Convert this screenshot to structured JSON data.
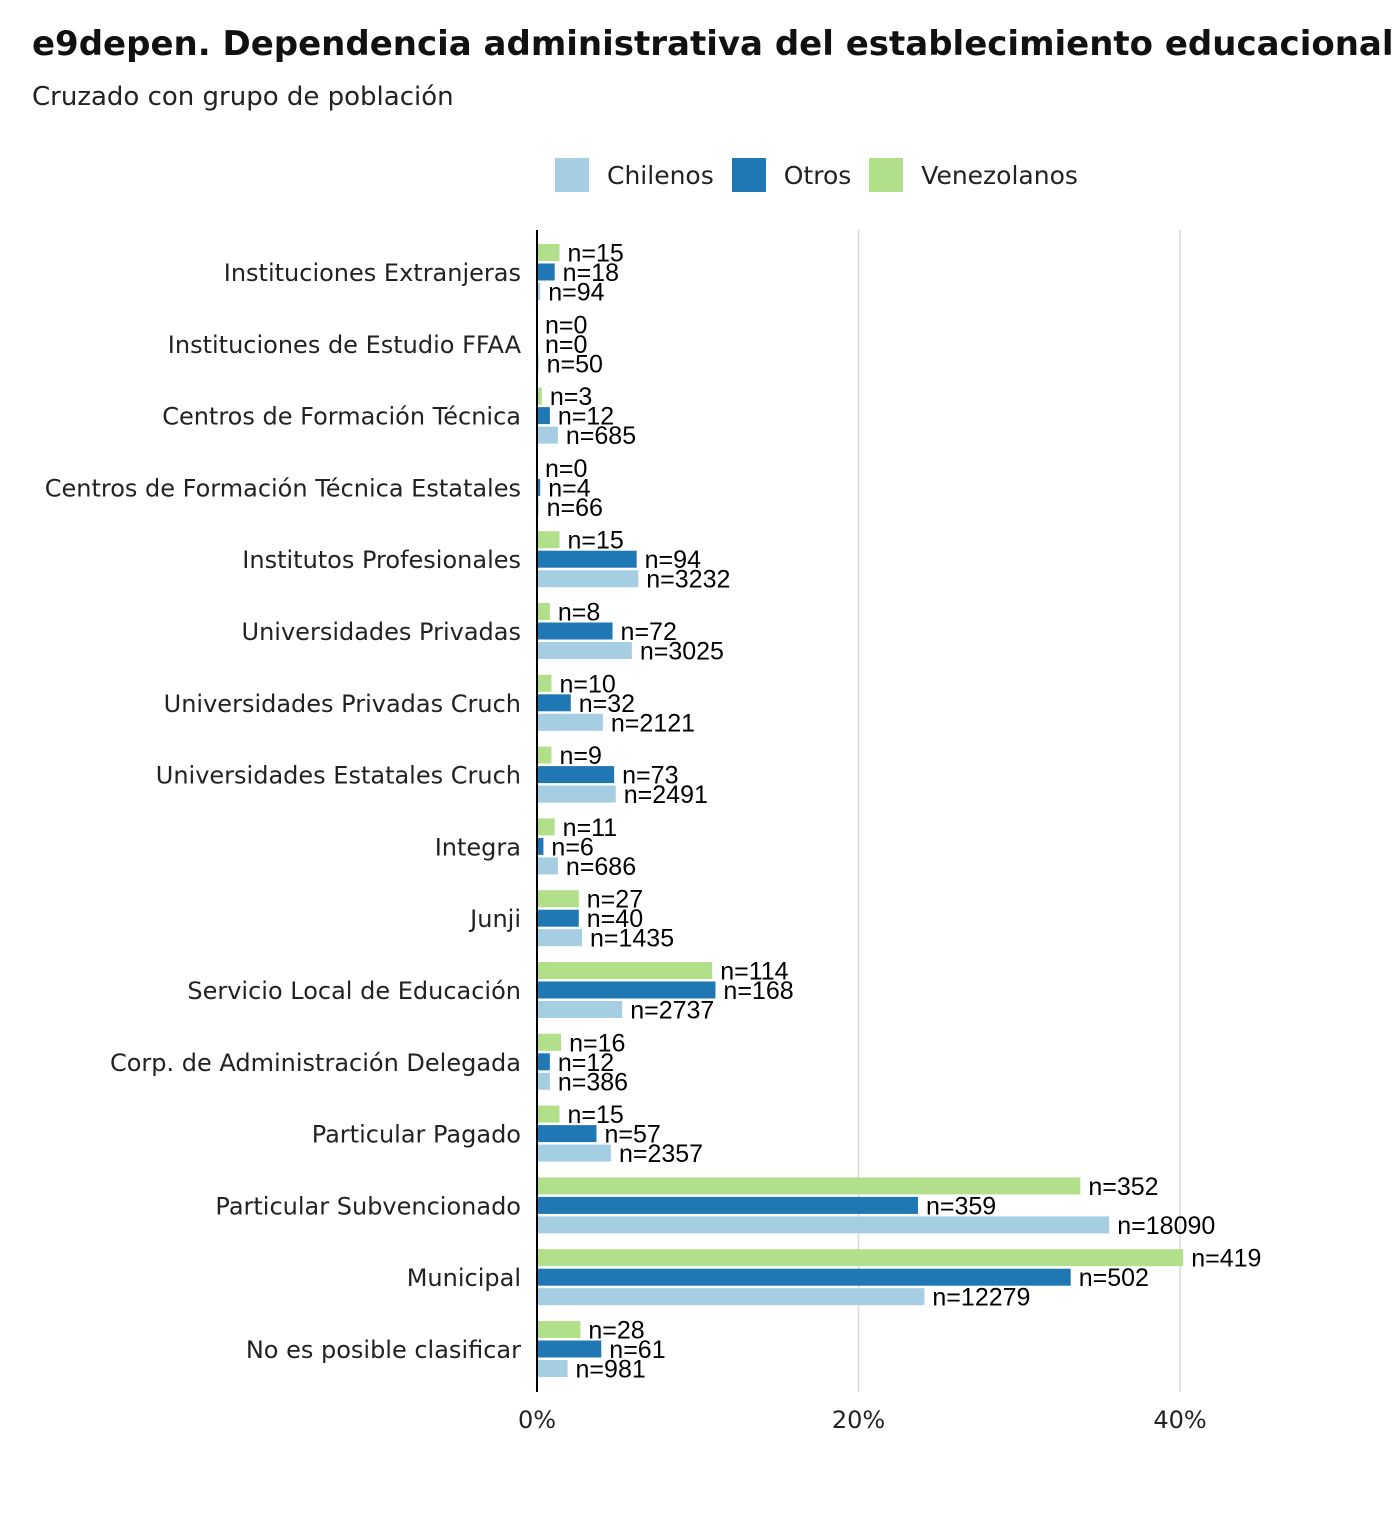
{
  "chart_data": {
    "type": "bar",
    "orientation": "horizontal",
    "title": "e9depen. Dependencia administrativa del establecimiento educacional",
    "subtitle": "Cruzado con grupo de población",
    "categories": [
      "Instituciones Extranjeras",
      "Instituciones de Estudio FFAA",
      "Centros de Formación Técnica",
      "Centros de Formación Técnica Estatales",
      "Institutos Profesionales",
      "Universidades Privadas",
      "Universidades Privadas Cruch",
      "Universidades Estatales Cruch",
      "Integra",
      "Junji",
      "Servicio Local de Educación",
      "Corp. de Administración Delegada",
      "Particular Pagado",
      "Particular Subvencionado",
      "Municipal",
      "No es posible clasificar"
    ],
    "series": [
      {
        "name": "Chilenos",
        "color": "#a6cee3",
        "values": [
          0.2,
          0.1,
          1.3,
          0.1,
          6.3,
          5.9,
          4.1,
          4.9,
          1.3,
          2.8,
          5.3,
          0.8,
          4.6,
          35.6,
          24.1,
          1.9
        ],
        "labels": [
          "n=94",
          "n=50",
          "n=685",
          "n=66",
          "n=3232",
          "n=3025",
          "n=2121",
          "n=2491",
          "n=686",
          "n=1435",
          "n=2737",
          "n=386",
          "n=2357",
          "n=18090",
          "n=12279",
          "n=981"
        ]
      },
      {
        "name": "Otros",
        "color": "#1f78b4",
        "values": [
          1.1,
          0.0,
          0.8,
          0.2,
          6.2,
          4.7,
          2.1,
          4.8,
          0.4,
          2.6,
          11.1,
          0.8,
          3.7,
          23.7,
          33.2,
          4.0
        ],
        "labels": [
          "n=18",
          "n=0",
          "n=12",
          "n=4",
          "n=94",
          "n=72",
          "n=32",
          "n=73",
          "n=6",
          "n=40",
          "n=168",
          "n=12",
          "n=57",
          "n=359",
          "n=502",
          "n=61"
        ]
      },
      {
        "name": "Venezolanos",
        "color": "#b2df8a",
        "values": [
          1.4,
          0.0,
          0.3,
          0.0,
          1.4,
          0.8,
          0.9,
          0.9,
          1.1,
          2.6,
          10.9,
          1.5,
          1.4,
          33.8,
          40.2,
          2.7
        ],
        "labels": [
          "n=15",
          "n=0",
          "n=3",
          "n=0",
          "n=15",
          "n=8",
          "n=10",
          "n=9",
          "n=11",
          "n=27",
          "n=114",
          "n=16",
          "n=15",
          "n=352",
          "n=419",
          "n=28"
        ]
      }
    ],
    "xlim": [
      0,
      45
    ],
    "xticks": [
      {
        "value": 0,
        "label": "0%"
      },
      {
        "value": 20,
        "label": "20%"
      },
      {
        "value": 40,
        "label": "40%"
      }
    ],
    "xlabel": "",
    "ylabel": "",
    "grid": "vertical major gridlines",
    "legend_position": "top"
  }
}
